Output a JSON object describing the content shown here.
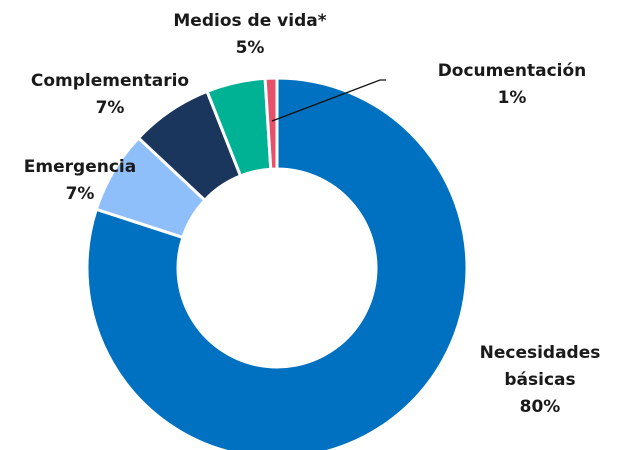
{
  "chart_data": {
    "type": "donut",
    "categories": [
      "Necesidades básicas",
      "Emergencia",
      "Complementario",
      "Medios de vida*",
      "Documentación"
    ],
    "values": [
      80,
      7,
      7,
      5,
      1
    ],
    "value_labels": [
      "80%",
      "7%",
      "7%",
      "5%",
      "1%"
    ],
    "colors": [
      "#0070c0",
      "#8fbffa",
      "#1a365d",
      "#00b294",
      "#e8506a"
    ]
  }
}
